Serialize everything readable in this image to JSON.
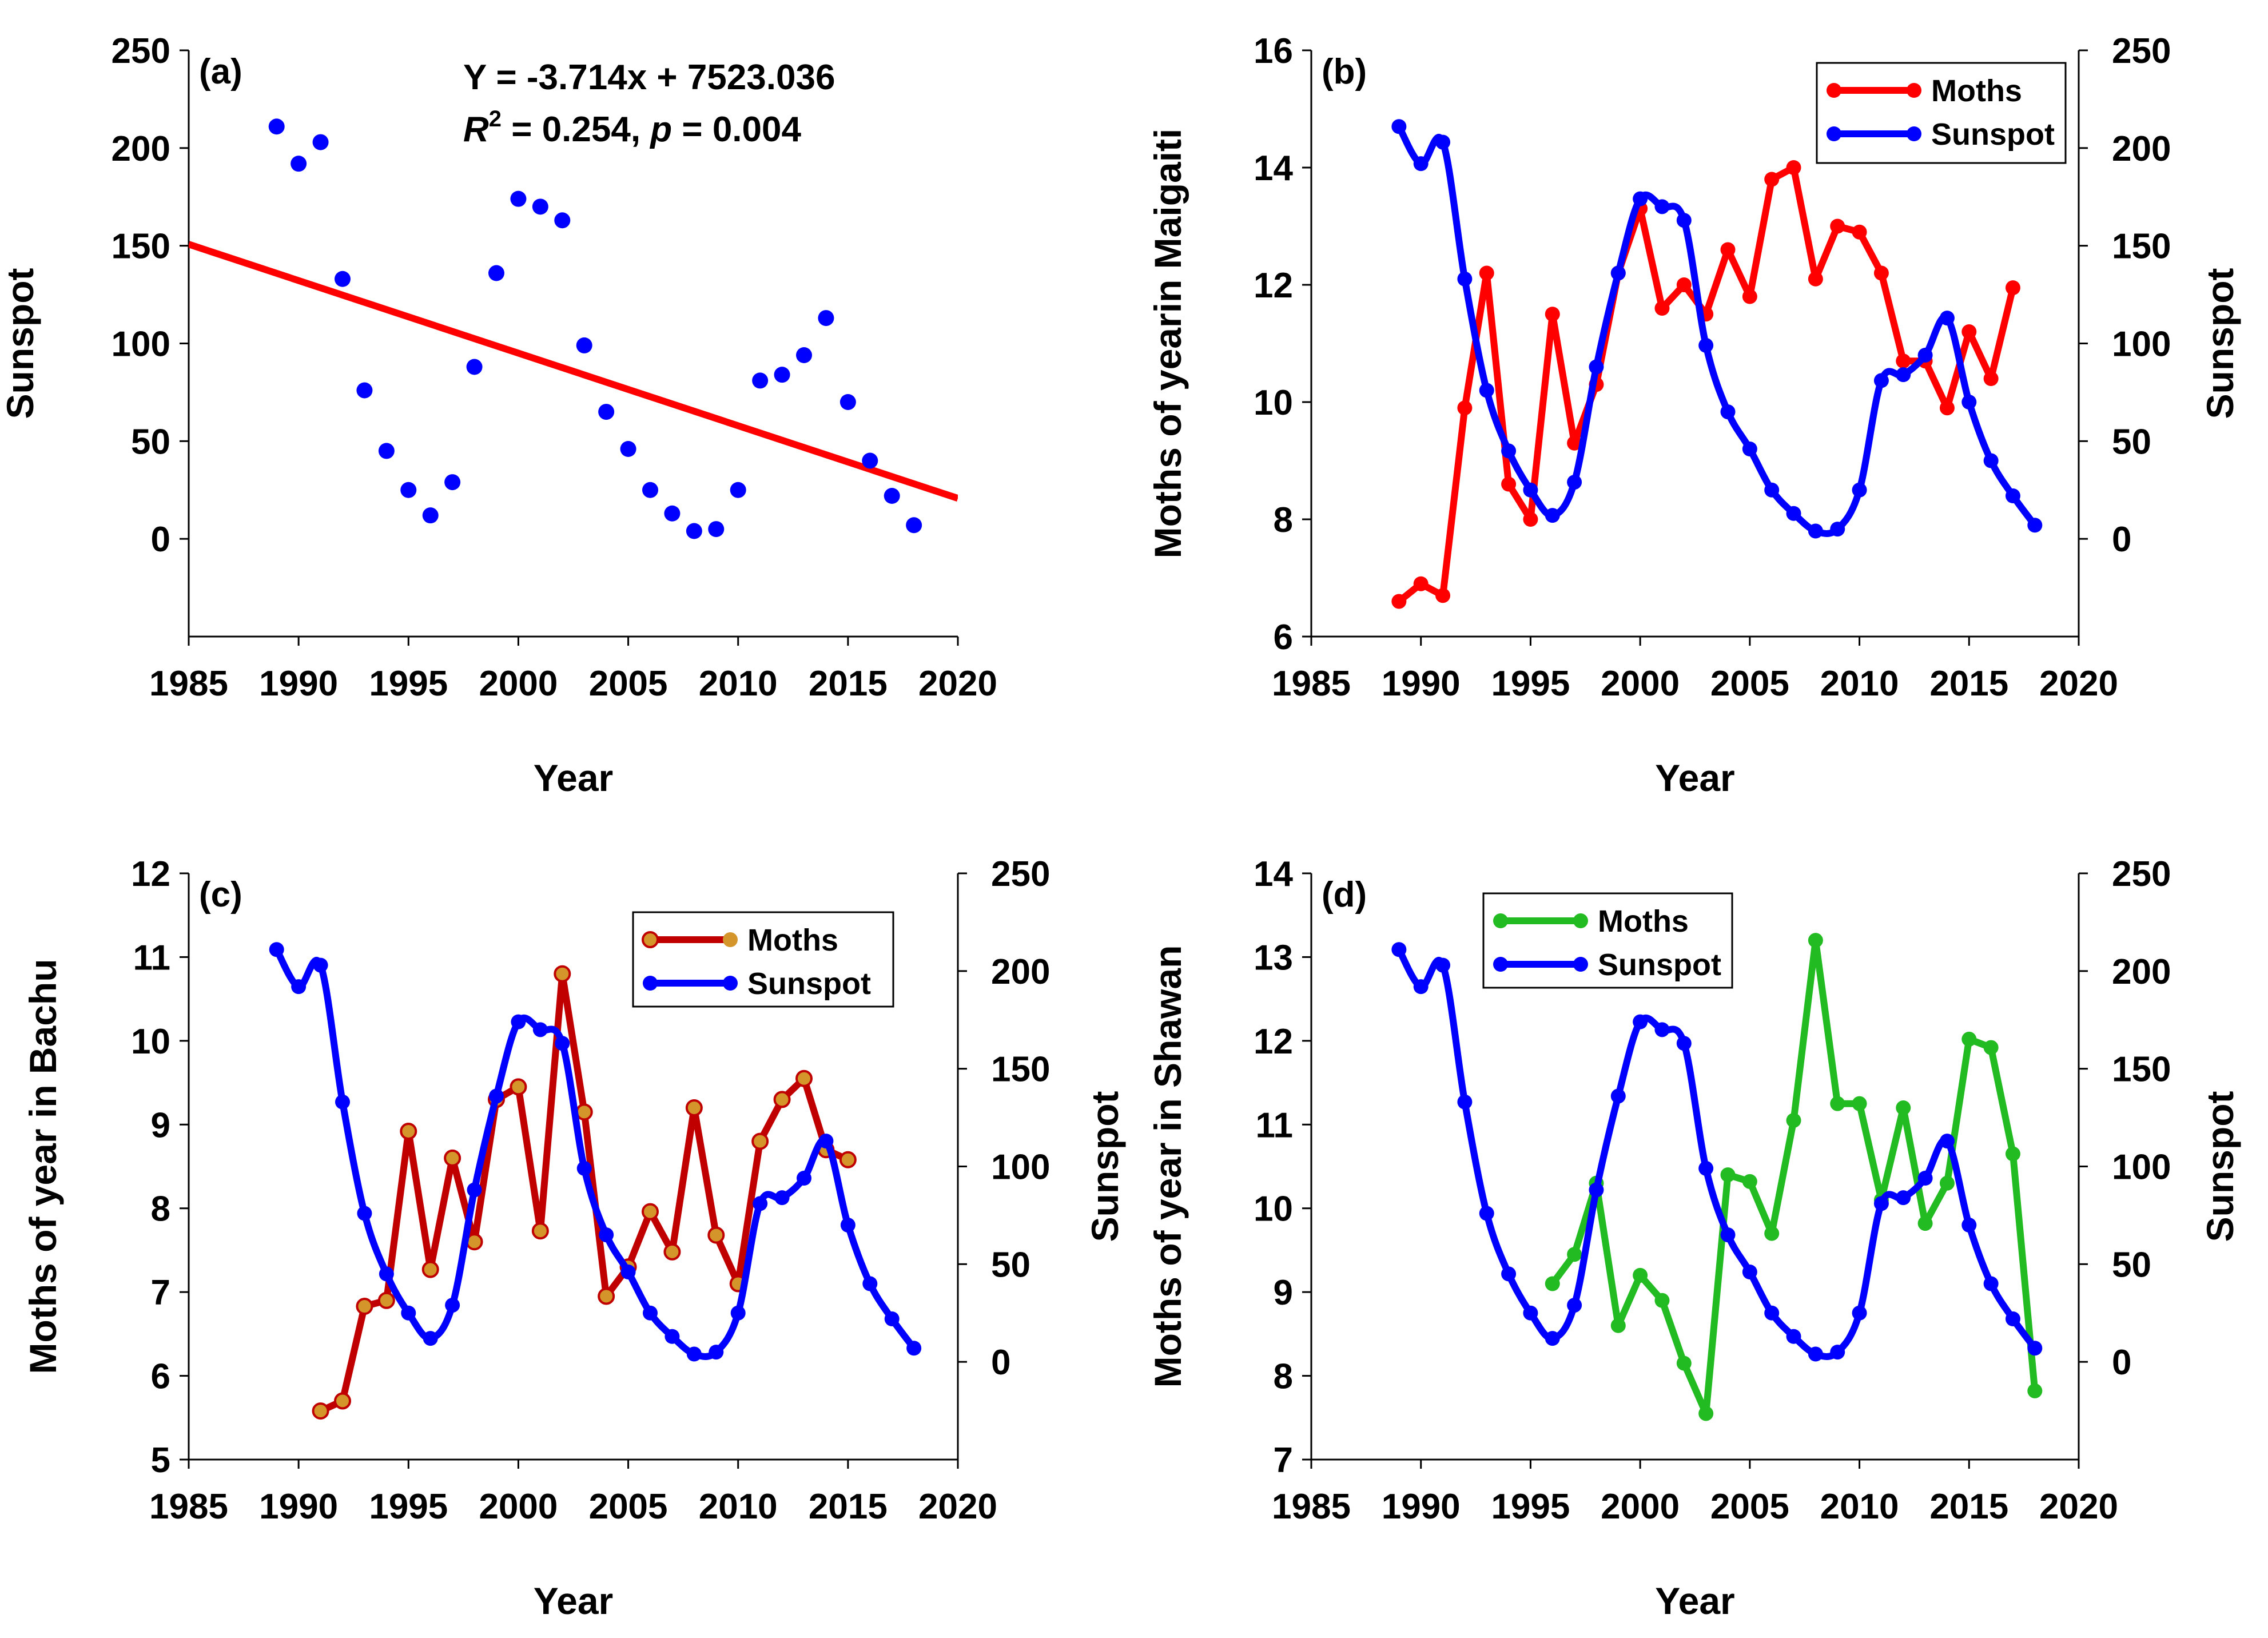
{
  "chart_data": [
    {
      "panel": "a",
      "type": "scatter",
      "panel_label": "(a)",
      "xlabel": "Year",
      "ylabel": "Sunspot",
      "xlim": [
        1985,
        2020
      ],
      "ylim": [
        -50,
        250
      ],
      "x_ticks": [
        1985,
        1990,
        1995,
        2000,
        2005,
        2010,
        2015,
        2020
      ],
      "y_ticks": [
        0,
        50,
        100,
        150,
        200,
        250
      ],
      "annotation_line1": "Y = -3.714x + 7523.036",
      "annotation_r": "R",
      "annotation_sup": "2",
      "annotation_mid": " = 0.254, ",
      "annotation_p": "p",
      "annotation_end": " = 0.004",
      "series": [
        {
          "name": "Sunspot",
          "color": "#0000ff",
          "x": [
            1989,
            1990,
            1991,
            1992,
            1993,
            1994,
            1995,
            1996,
            1997,
            1998,
            1999,
            2000,
            2001,
            2002,
            2003,
            2004,
            2005,
            2006,
            2007,
            2008,
            2009,
            2010,
            2011,
            2012,
            2013,
            2014,
            2015,
            2016,
            2017,
            2018
          ],
          "values": [
            211,
            192,
            203,
            133,
            76,
            45,
            25,
            12,
            29,
            88,
            136,
            174,
            170,
            163,
            99,
            65,
            46,
            25,
            13,
            4,
            5,
            25,
            81,
            84,
            94,
            113,
            70,
            40,
            22,
            7
          ]
        }
      ],
      "trendline": {
        "slope": -3.714,
        "intercept": 7523.036,
        "color": "#ff0000"
      }
    },
    {
      "panel": "b",
      "type": "line",
      "panel_label": "(b)",
      "xlabel": "Year",
      "ylabel": "Moths of yearin Maigaiti",
      "y2label": "Sunspot",
      "xlim": [
        1985,
        2020
      ],
      "ylim": [
        6,
        16
      ],
      "y2lim": [
        -50,
        250
      ],
      "x_ticks": [
        1985,
        1990,
        1995,
        2000,
        2005,
        2010,
        2015,
        2020
      ],
      "y_ticks": [
        6,
        8,
        10,
        12,
        14,
        16
      ],
      "y2_ticks": [
        0,
        50,
        100,
        150,
        200,
        250
      ],
      "legend": [
        "Moths",
        "Sunspot"
      ],
      "series": [
        {
          "name": "Moths",
          "axis": "left",
          "color": "#ff0000",
          "smooth": false,
          "x": [
            1989,
            1990,
            1991,
            1992,
            1993,
            1994,
            1995,
            1996,
            1997,
            1998,
            1999,
            2000,
            2001,
            2002,
            2003,
            2004,
            2005,
            2006,
            2007,
            2008,
            2009,
            2010,
            2011,
            2012,
            2013,
            2014,
            2015,
            2016,
            2017
          ],
          "values": [
            6.6,
            6.9,
            6.7,
            9.9,
            12.2,
            8.6,
            8.0,
            11.5,
            9.3,
            10.3,
            12.2,
            13.3,
            11.6,
            12.0,
            11.5,
            12.6,
            11.8,
            13.8,
            14.0,
            12.1,
            13.0,
            12.9,
            12.2,
            10.7,
            10.7,
            9.9,
            11.2,
            10.4,
            11.95
          ]
        },
        {
          "name": "Sunspot",
          "axis": "right",
          "color": "#0000ff",
          "smooth": true,
          "x": [
            1989,
            1990,
            1991,
            1992,
            1993,
            1994,
            1995,
            1996,
            1997,
            1998,
            1999,
            2000,
            2001,
            2002,
            2003,
            2004,
            2005,
            2006,
            2007,
            2008,
            2009,
            2010,
            2011,
            2012,
            2013,
            2014,
            2015,
            2016,
            2017,
            2018
          ],
          "values": [
            211,
            192,
            203,
            133,
            76,
            45,
            25,
            12,
            29,
            88,
            136,
            174,
            170,
            163,
            99,
            65,
            46,
            25,
            13,
            4,
            5,
            25,
            81,
            84,
            94,
            113,
            70,
            40,
            22,
            7
          ]
        }
      ]
    },
    {
      "panel": "c",
      "type": "line",
      "panel_label": "(c)",
      "xlabel": "Year",
      "ylabel": "Moths of year in Bachu",
      "y2label": "Sunspot",
      "xlim": [
        1985,
        2020
      ],
      "ylim": [
        5,
        12
      ],
      "y2lim": [
        -50,
        250
      ],
      "x_ticks": [
        1985,
        1990,
        1995,
        2000,
        2005,
        2010,
        2015,
        2020
      ],
      "y_ticks": [
        5,
        6,
        7,
        8,
        9,
        10,
        11,
        12
      ],
      "y2_ticks": [
        0,
        50,
        100,
        150,
        200,
        250
      ],
      "legend": [
        "Moths",
        "Sunspot"
      ],
      "series": [
        {
          "name": "Moths",
          "axis": "left",
          "color": "#c00000",
          "marker_color": "#d4952b",
          "smooth": false,
          "x": [
            1991,
            1992,
            1993,
            1994,
            1995,
            1996,
            1997,
            1998,
            1999,
            2000,
            2001,
            2002,
            2003,
            2004,
            2005,
            2006,
            2007,
            2008,
            2009,
            2010,
            2011,
            2012,
            2013,
            2014,
            2015
          ],
          "values": [
            5.58,
            5.7,
            6.83,
            6.9,
            8.92,
            7.27,
            8.6,
            7.6,
            9.3,
            9.45,
            7.73,
            10.8,
            9.15,
            6.95,
            7.3,
            7.96,
            7.48,
            9.2,
            7.68,
            7.1,
            8.8,
            9.3,
            9.55,
            8.7,
            8.58
          ]
        },
        {
          "name": "Sunspot",
          "axis": "right",
          "color": "#0000ff",
          "smooth": true,
          "x": [
            1989,
            1990,
            1991,
            1992,
            1993,
            1994,
            1995,
            1996,
            1997,
            1998,
            1999,
            2000,
            2001,
            2002,
            2003,
            2004,
            2005,
            2006,
            2007,
            2008,
            2009,
            2010,
            2011,
            2012,
            2013,
            2014,
            2015,
            2016,
            2017,
            2018
          ],
          "values": [
            211,
            192,
            203,
            133,
            76,
            45,
            25,
            12,
            29,
            88,
            136,
            174,
            170,
            163,
            99,
            65,
            46,
            25,
            13,
            4,
            5,
            25,
            81,
            84,
            94,
            113,
            70,
            40,
            22,
            7
          ]
        }
      ]
    },
    {
      "panel": "d",
      "type": "line",
      "panel_label": "(d)",
      "xlabel": "Year",
      "ylabel": "Moths of year in Shawan",
      "y2label": "Sunspot",
      "xlim": [
        1985,
        2020
      ],
      "ylim": [
        7,
        14
      ],
      "y2lim": [
        -50,
        250
      ],
      "x_ticks": [
        1985,
        1990,
        1995,
        2000,
        2005,
        2010,
        2015,
        2020
      ],
      "y_ticks": [
        7,
        8,
        9,
        10,
        11,
        12,
        13,
        14
      ],
      "y2_ticks": [
        0,
        50,
        100,
        150,
        200,
        250
      ],
      "legend": [
        "Moths",
        "Sunspot"
      ],
      "series": [
        {
          "name": "Moths",
          "axis": "left",
          "color": "#22bb22",
          "smooth": false,
          "x": [
            1996,
            1997,
            1998,
            1999,
            2000,
            2001,
            2002,
            2003,
            2004,
            2005,
            2006,
            2007,
            2008,
            2009,
            2010,
            2011,
            2012,
            2013,
            2014,
            2015,
            2016,
            2017,
            2018
          ],
          "values": [
            9.1,
            9.45,
            10.3,
            8.6,
            9.2,
            8.9,
            8.15,
            7.55,
            10.4,
            10.32,
            9.7,
            11.05,
            13.2,
            11.25,
            11.25,
            10.1,
            11.2,
            9.82,
            10.3,
            12.02,
            11.92,
            10.65,
            7.82
          ]
        },
        {
          "name": "Sunspot",
          "axis": "right",
          "color": "#0000ff",
          "smooth": true,
          "x": [
            1989,
            1990,
            1991,
            1992,
            1993,
            1994,
            1995,
            1996,
            1997,
            1998,
            1999,
            2000,
            2001,
            2002,
            2003,
            2004,
            2005,
            2006,
            2007,
            2008,
            2009,
            2010,
            2011,
            2012,
            2013,
            2014,
            2015,
            2016,
            2017,
            2018
          ],
          "values": [
            211,
            192,
            203,
            133,
            76,
            45,
            25,
            12,
            29,
            88,
            136,
            174,
            170,
            163,
            99,
            65,
            46,
            25,
            13,
            4,
            5,
            25,
            81,
            84,
            94,
            113,
            70,
            40,
            22,
            7
          ]
        }
      ]
    }
  ]
}
